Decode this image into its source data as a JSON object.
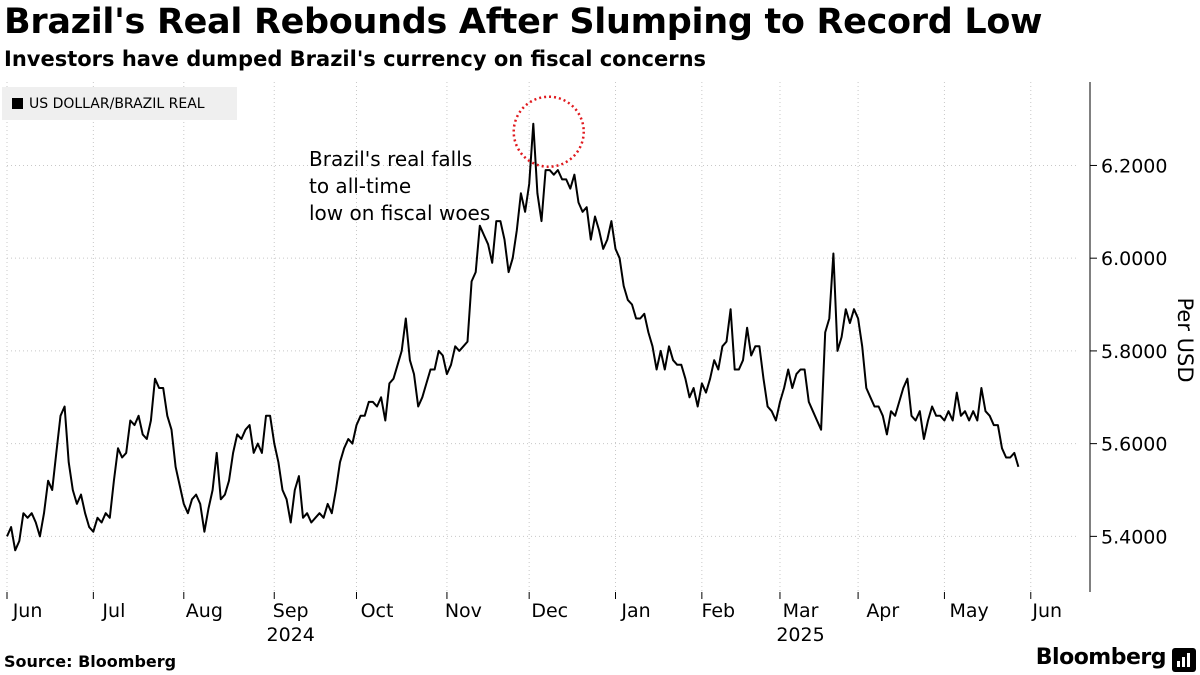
{
  "title": "Brazil's Real Rebounds After Slumping to Record Low",
  "subtitle": "Investors have dumped Brazil's currency on fiscal concerns",
  "source": "Source: Bloomberg",
  "brand": "Bloomberg",
  "chart_data": {
    "type": "line",
    "title": "Brazil's Real Rebounds After Slumping to Record Low",
    "xlabel": "",
    "ylabel": "Per USD",
    "ylim": [
      5.28,
      6.38
    ],
    "yticks": [
      5.4,
      5.6,
      5.8,
      6.0,
      6.2
    ],
    "ytick_labels": [
      "5.4000",
      "5.6000",
      "5.8000",
      "6.0000",
      "6.2000"
    ],
    "x_range_days": [
      0,
      260
    ],
    "month_ticks": [
      {
        "label": "Jun",
        "day": 0
      },
      {
        "label": "Jul",
        "day": 21
      },
      {
        "label": "Aug",
        "day": 43
      },
      {
        "label": "Sep",
        "day": 65
      },
      {
        "label": "Oct",
        "day": 85
      },
      {
        "label": "Nov",
        "day": 107
      },
      {
        "label": "Dec",
        "day": 127
      },
      {
        "label": "Jan",
        "day": 148
      },
      {
        "label": "Feb",
        "day": 169
      },
      {
        "label": "Mar",
        "day": 188
      },
      {
        "label": "Apr",
        "day": 207
      },
      {
        "label": "May",
        "day": 228
      },
      {
        "label": "Jun",
        "day": 249
      }
    ],
    "month_labels": [
      {
        "label": "Jun",
        "day": 5
      },
      {
        "label": "Jul",
        "day": 26
      },
      {
        "label": "Aug",
        "day": 48
      },
      {
        "label": "Sep",
        "day": 69
      },
      {
        "label": "Oct",
        "day": 90
      },
      {
        "label": "Nov",
        "day": 111
      },
      {
        "label": "Dec",
        "day": 132
      },
      {
        "label": "Jan",
        "day": 153
      },
      {
        "label": "Feb",
        "day": 173
      },
      {
        "label": "Mar",
        "day": 193
      },
      {
        "label": "Apr",
        "day": 213
      },
      {
        "label": "May",
        "day": 234
      },
      {
        "label": "Jun",
        "day": 253
      }
    ],
    "year_labels": [
      {
        "label": "2024",
        "day": 69
      },
      {
        "label": "2025",
        "day": 193
      }
    ],
    "legend": [
      "US DOLLAR/BRAZIL REAL"
    ],
    "annotation": {
      "lines": [
        "Brazil's real falls",
        "to all-time",
        "low on fiscal woes"
      ],
      "peak_day": 132,
      "peak_value": 6.29
    },
    "series": [
      {
        "name": "US DOLLAR/BRAZIL REAL",
        "points": [
          [
            0,
            5.4
          ],
          [
            1,
            5.42
          ],
          [
            2,
            5.37
          ],
          [
            3,
            5.39
          ],
          [
            4,
            5.45
          ],
          [
            5,
            5.44
          ],
          [
            6,
            5.45
          ],
          [
            7,
            5.43
          ],
          [
            8,
            5.4
          ],
          [
            9,
            5.45
          ],
          [
            10,
            5.52
          ],
          [
            11,
            5.5
          ],
          [
            12,
            5.58
          ],
          [
            13,
            5.66
          ],
          [
            14,
            5.68
          ],
          [
            15,
            5.56
          ],
          [
            16,
            5.5
          ],
          [
            17,
            5.47
          ],
          [
            18,
            5.49
          ],
          [
            19,
            5.45
          ],
          [
            20,
            5.42
          ],
          [
            21,
            5.41
          ],
          [
            22,
            5.44
          ],
          [
            23,
            5.43
          ],
          [
            24,
            5.45
          ],
          [
            25,
            5.44
          ],
          [
            26,
            5.52
          ],
          [
            27,
            5.59
          ],
          [
            28,
            5.57
          ],
          [
            29,
            5.58
          ],
          [
            30,
            5.65
          ],
          [
            31,
            5.64
          ],
          [
            32,
            5.66
          ],
          [
            33,
            5.62
          ],
          [
            34,
            5.61
          ],
          [
            35,
            5.65
          ],
          [
            36,
            5.74
          ],
          [
            37,
            5.72
          ],
          [
            38,
            5.72
          ],
          [
            39,
            5.66
          ],
          [
            40,
            5.63
          ],
          [
            41,
            5.55
          ],
          [
            42,
            5.51
          ],
          [
            43,
            5.47
          ],
          [
            44,
            5.45
          ],
          [
            45,
            5.48
          ],
          [
            46,
            5.49
          ],
          [
            47,
            5.47
          ],
          [
            48,
            5.41
          ],
          [
            49,
            5.46
          ],
          [
            50,
            5.5
          ],
          [
            51,
            5.58
          ],
          [
            52,
            5.48
          ],
          [
            53,
            5.49
          ],
          [
            54,
            5.52
          ],
          [
            55,
            5.58
          ],
          [
            56,
            5.62
          ],
          [
            57,
            5.61
          ],
          [
            58,
            5.63
          ],
          [
            59,
            5.64
          ],
          [
            60,
            5.58
          ],
          [
            61,
            5.6
          ],
          [
            62,
            5.58
          ],
          [
            63,
            5.66
          ],
          [
            64,
            5.66
          ],
          [
            65,
            5.6
          ],
          [
            66,
            5.56
          ],
          [
            67,
            5.5
          ],
          [
            68,
            5.48
          ],
          [
            69,
            5.43
          ],
          [
            70,
            5.5
          ],
          [
            71,
            5.53
          ],
          [
            72,
            5.44
          ],
          [
            73,
            5.45
          ],
          [
            74,
            5.43
          ],
          [
            75,
            5.44
          ],
          [
            76,
            5.45
          ],
          [
            77,
            5.44
          ],
          [
            78,
            5.47
          ],
          [
            79,
            5.45
          ],
          [
            80,
            5.5
          ],
          [
            81,
            5.56
          ],
          [
            82,
            5.59
          ],
          [
            83,
            5.61
          ],
          [
            84,
            5.6
          ],
          [
            85,
            5.64
          ],
          [
            86,
            5.66
          ],
          [
            87,
            5.66
          ],
          [
            88,
            5.69
          ],
          [
            89,
            5.69
          ],
          [
            90,
            5.68
          ],
          [
            91,
            5.7
          ],
          [
            92,
            5.65
          ],
          [
            93,
            5.73
          ],
          [
            94,
            5.74
          ],
          [
            95,
            5.77
          ],
          [
            96,
            5.8
          ],
          [
            97,
            5.87
          ],
          [
            98,
            5.78
          ],
          [
            99,
            5.75
          ],
          [
            100,
            5.68
          ],
          [
            101,
            5.7
          ],
          [
            102,
            5.73
          ],
          [
            103,
            5.76
          ],
          [
            104,
            5.76
          ],
          [
            105,
            5.8
          ],
          [
            106,
            5.79
          ],
          [
            107,
            5.75
          ],
          [
            108,
            5.77
          ],
          [
            109,
            5.81
          ],
          [
            110,
            5.8
          ],
          [
            111,
            5.81
          ],
          [
            112,
            5.82
          ],
          [
            113,
            5.95
          ],
          [
            114,
            5.97
          ],
          [
            115,
            6.07
          ],
          [
            116,
            6.05
          ],
          [
            117,
            6.03
          ],
          [
            118,
            5.99
          ],
          [
            119,
            6.08
          ],
          [
            120,
            6.08
          ],
          [
            121,
            6.04
          ],
          [
            122,
            5.97
          ],
          [
            123,
            6.0
          ],
          [
            124,
            6.06
          ],
          [
            125,
            6.14
          ],
          [
            126,
            6.1
          ],
          [
            127,
            6.16
          ],
          [
            128,
            6.29
          ],
          [
            129,
            6.14
          ],
          [
            130,
            6.08
          ],
          [
            131,
            6.19
          ],
          [
            132,
            6.19
          ],
          [
            133,
            6.18
          ],
          [
            134,
            6.19
          ],
          [
            135,
            6.17
          ],
          [
            136,
            6.17
          ],
          [
            137,
            6.15
          ],
          [
            138,
            6.18
          ],
          [
            139,
            6.12
          ],
          [
            140,
            6.1
          ],
          [
            141,
            6.11
          ],
          [
            142,
            6.04
          ],
          [
            143,
            6.09
          ],
          [
            144,
            6.06
          ],
          [
            145,
            6.02
          ],
          [
            146,
            6.04
          ],
          [
            147,
            6.08
          ],
          [
            148,
            6.02
          ],
          [
            149,
            6.0
          ],
          [
            150,
            5.94
          ],
          [
            151,
            5.91
          ],
          [
            152,
            5.9
          ],
          [
            153,
            5.87
          ],
          [
            154,
            5.87
          ],
          [
            155,
            5.88
          ],
          [
            156,
            5.84
          ],
          [
            157,
            5.81
          ],
          [
            158,
            5.76
          ],
          [
            159,
            5.8
          ],
          [
            160,
            5.76
          ],
          [
            161,
            5.81
          ],
          [
            162,
            5.78
          ],
          [
            163,
            5.77
          ],
          [
            164,
            5.77
          ],
          [
            165,
            5.74
          ],
          [
            166,
            5.7
          ],
          [
            167,
            5.72
          ],
          [
            168,
            5.68
          ],
          [
            169,
            5.73
          ],
          [
            170,
            5.71
          ],
          [
            171,
            5.74
          ],
          [
            172,
            5.78
          ],
          [
            173,
            5.76
          ],
          [
            174,
            5.81
          ],
          [
            175,
            5.82
          ],
          [
            176,
            5.89
          ],
          [
            177,
            5.76
          ],
          [
            178,
            5.76
          ],
          [
            179,
            5.78
          ],
          [
            180,
            5.85
          ],
          [
            181,
            5.79
          ],
          [
            182,
            5.81
          ],
          [
            183,
            5.81
          ],
          [
            184,
            5.74
          ],
          [
            185,
            5.68
          ],
          [
            186,
            5.67
          ],
          [
            187,
            5.65
          ],
          [
            188,
            5.69
          ],
          [
            189,
            5.72
          ],
          [
            190,
            5.76
          ],
          [
            191,
            5.72
          ],
          [
            192,
            5.75
          ],
          [
            193,
            5.76
          ],
          [
            194,
            5.76
          ],
          [
            195,
            5.69
          ],
          [
            196,
            5.67
          ],
          [
            197,
            5.65
          ],
          [
            198,
            5.63
          ],
          [
            199,
            5.84
          ],
          [
            200,
            5.87
          ],
          [
            201,
            6.01
          ],
          [
            202,
            5.8
          ],
          [
            203,
            5.83
          ],
          [
            204,
            5.89
          ],
          [
            205,
            5.86
          ],
          [
            206,
            5.89
          ],
          [
            207,
            5.87
          ],
          [
            208,
            5.81
          ],
          [
            209,
            5.72
          ],
          [
            210,
            5.7
          ],
          [
            211,
            5.68
          ],
          [
            212,
            5.68
          ],
          [
            213,
            5.66
          ],
          [
            214,
            5.62
          ],
          [
            215,
            5.67
          ],
          [
            216,
            5.66
          ],
          [
            217,
            5.69
          ],
          [
            218,
            5.72
          ],
          [
            219,
            5.74
          ],
          [
            220,
            5.66
          ],
          [
            221,
            5.65
          ],
          [
            222,
            5.67
          ],
          [
            223,
            5.61
          ],
          [
            224,
            5.65
          ],
          [
            225,
            5.68
          ],
          [
            226,
            5.66
          ],
          [
            227,
            5.66
          ],
          [
            228,
            5.65
          ],
          [
            229,
            5.67
          ],
          [
            230,
            5.65
          ],
          [
            231,
            5.71
          ],
          [
            232,
            5.66
          ],
          [
            233,
            5.67
          ],
          [
            234,
            5.65
          ],
          [
            235,
            5.67
          ],
          [
            236,
            5.65
          ],
          [
            237,
            5.72
          ],
          [
            238,
            5.67
          ],
          [
            239,
            5.66
          ],
          [
            240,
            5.64
          ],
          [
            241,
            5.64
          ],
          [
            242,
            5.59
          ],
          [
            243,
            5.57
          ],
          [
            244,
            5.57
          ],
          [
            245,
            5.58
          ],
          [
            246,
            5.55
          ]
        ]
      }
    ]
  }
}
